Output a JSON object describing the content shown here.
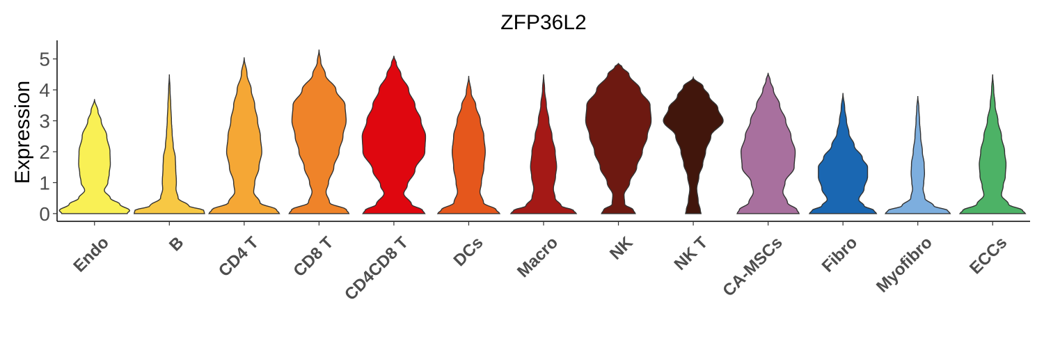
{
  "chart_data": {
    "type": "violin",
    "title": "ZFP36L2",
    "xlabel": "",
    "ylabel": "Expression",
    "ylim": [
      -0.25,
      5.6
    ],
    "yticks": [
      0,
      1,
      2,
      3,
      4,
      5
    ],
    "grid": false,
    "legend": "none",
    "categories": [
      "Endo",
      "B",
      "CD4 T",
      "CD8 T",
      "CD4CD8 T",
      "DCs",
      "Macro",
      "NK",
      "NK T",
      "CA-MSCs",
      "Fibro",
      "Myofibro",
      "ECCs"
    ],
    "series": [
      {
        "category": "Endo",
        "color": "#F9F055",
        "max": 3.7,
        "profile": [
          [
            0,
            0.93
          ],
          [
            0.1,
            1
          ],
          [
            0.3,
            0.72
          ],
          [
            0.5,
            0.45
          ],
          [
            0.75,
            0.28
          ],
          [
            1,
            0.38
          ],
          [
            1.3,
            0.42
          ],
          [
            1.6,
            0.45
          ],
          [
            2.0,
            0.44
          ],
          [
            2.5,
            0.35
          ],
          [
            3.0,
            0.19
          ],
          [
            3.3,
            0.1
          ],
          [
            3.7,
            0
          ]
        ]
      },
      {
        "category": "B",
        "color": "#F7C844",
        "max": 4.5,
        "profile": [
          [
            0,
            1
          ],
          [
            0.1,
            0.98
          ],
          [
            0.25,
            0.55
          ],
          [
            0.5,
            0.25
          ],
          [
            0.8,
            0.19
          ],
          [
            1.0,
            0.2
          ],
          [
            1.5,
            0.18
          ],
          [
            1.8,
            0.17
          ],
          [
            2.2,
            0.11
          ],
          [
            2.6,
            0.08
          ],
          [
            3.0,
            0.06
          ],
          [
            3.5,
            0.04
          ],
          [
            4.0,
            0.02
          ],
          [
            4.5,
            0
          ]
        ]
      },
      {
        "category": "CD4 T",
        "color": "#F5A735",
        "max": 5.05,
        "profile": [
          [
            0,
            1
          ],
          [
            0.12,
            0.92
          ],
          [
            0.35,
            0.45
          ],
          [
            0.7,
            0.27
          ],
          [
            1.0,
            0.3
          ],
          [
            1.5,
            0.42
          ],
          [
            2.0,
            0.5
          ],
          [
            2.5,
            0.46
          ],
          [
            3.0,
            0.38
          ],
          [
            3.5,
            0.3
          ],
          [
            4.0,
            0.2
          ],
          [
            4.5,
            0.08
          ],
          [
            5.05,
            0
          ]
        ]
      },
      {
        "category": "CD8 T",
        "color": "#EF8329",
        "max": 5.3,
        "profile": [
          [
            0,
            0.85
          ],
          [
            0.12,
            0.78
          ],
          [
            0.35,
            0.3
          ],
          [
            0.7,
            0.2
          ],
          [
            1.0,
            0.27
          ],
          [
            1.5,
            0.42
          ],
          [
            2.0,
            0.57
          ],
          [
            2.5,
            0.68
          ],
          [
            3.0,
            0.77
          ],
          [
            3.5,
            0.74
          ],
          [
            4.0,
            0.48
          ],
          [
            4.5,
            0.18
          ],
          [
            4.9,
            0.05
          ],
          [
            5.3,
            0
          ]
        ]
      },
      {
        "category": "CD4CD8 T",
        "color": "#DF070F",
        "max": 5.1,
        "profile": [
          [
            0,
            0.88
          ],
          [
            0.1,
            0.82
          ],
          [
            0.3,
            0.5
          ],
          [
            0.65,
            0.28
          ],
          [
            0.9,
            0.38
          ],
          [
            1.4,
            0.6
          ],
          [
            2.0,
            0.88
          ],
          [
            2.5,
            0.9
          ],
          [
            3.0,
            0.77
          ],
          [
            3.5,
            0.6
          ],
          [
            4.0,
            0.42
          ],
          [
            4.5,
            0.2
          ],
          [
            4.85,
            0.07
          ],
          [
            5.1,
            0
          ]
        ]
      },
      {
        "category": "DCs",
        "color": "#E5571C",
        "max": 4.45,
        "profile": [
          [
            0,
            0.88
          ],
          [
            0.12,
            0.78
          ],
          [
            0.35,
            0.42
          ],
          [
            0.7,
            0.32
          ],
          [
            1.0,
            0.36
          ],
          [
            1.5,
            0.43
          ],
          [
            2.0,
            0.47
          ],
          [
            2.5,
            0.43
          ],
          [
            3.0,
            0.33
          ],
          [
            3.5,
            0.2
          ],
          [
            3.9,
            0.07
          ],
          [
            4.45,
            0
          ]
        ]
      },
      {
        "category": "Macro",
        "color": "#A41916",
        "max": 4.5,
        "profile": [
          [
            0,
            0.93
          ],
          [
            0.1,
            0.85
          ],
          [
            0.25,
            0.5
          ],
          [
            0.5,
            0.33
          ],
          [
            0.8,
            0.28
          ],
          [
            1.2,
            0.34
          ],
          [
            1.5,
            0.37
          ],
          [
            2.0,
            0.33
          ],
          [
            2.5,
            0.24
          ],
          [
            3.0,
            0.15
          ],
          [
            3.5,
            0.08
          ],
          [
            4.0,
            0.03
          ],
          [
            4.5,
            0
          ]
        ]
      },
      {
        "category": "NK",
        "color": "#6D1911",
        "max": 4.85,
        "profile": [
          [
            0,
            0.48
          ],
          [
            0.12,
            0.42
          ],
          [
            0.3,
            0.18
          ],
          [
            0.6,
            0.16
          ],
          [
            1.0,
            0.32
          ],
          [
            1.5,
            0.52
          ],
          [
            2.0,
            0.68
          ],
          [
            2.5,
            0.82
          ],
          [
            3.0,
            0.93
          ],
          [
            3.5,
            0.9
          ],
          [
            4.0,
            0.62
          ],
          [
            4.5,
            0.3
          ],
          [
            4.75,
            0.1
          ],
          [
            4.85,
            0
          ]
        ]
      },
      {
        "category": "NK T",
        "color": "#41160C",
        "max": 4.4,
        "profile": [
          [
            0,
            0.22
          ],
          [
            0.1,
            0.2
          ],
          [
            0.4,
            0.14
          ],
          [
            0.8,
            0.1
          ],
          [
            1.2,
            0.16
          ],
          [
            1.6,
            0.27
          ],
          [
            2.0,
            0.35
          ],
          [
            2.5,
            0.5
          ],
          [
            3.0,
            0.85
          ],
          [
            3.4,
            0.7
          ],
          [
            3.8,
            0.45
          ],
          [
            4.1,
            0.28
          ],
          [
            4.4,
            0
          ]
        ]
      },
      {
        "category": "CA-MSCs",
        "color": "#A8709E",
        "max": 4.55,
        "profile": [
          [
            0,
            0.88
          ],
          [
            0.12,
            0.82
          ],
          [
            0.35,
            0.55
          ],
          [
            0.7,
            0.42
          ],
          [
            1.0,
            0.48
          ],
          [
            1.5,
            0.74
          ],
          [
            2.0,
            0.77
          ],
          [
            2.5,
            0.65
          ],
          [
            3.0,
            0.5
          ],
          [
            3.5,
            0.33
          ],
          [
            4.0,
            0.15
          ],
          [
            4.3,
            0.06
          ],
          [
            4.55,
            0
          ]
        ]
      },
      {
        "category": "Fibro",
        "color": "#1A67B2",
        "max": 3.9,
        "profile": [
          [
            0,
            0.95
          ],
          [
            0.1,
            0.88
          ],
          [
            0.25,
            0.6
          ],
          [
            0.45,
            0.45
          ],
          [
            0.8,
            0.6
          ],
          [
            1.2,
            0.7
          ],
          [
            1.5,
            0.7
          ],
          [
            1.8,
            0.55
          ],
          [
            2.2,
            0.32
          ],
          [
            2.6,
            0.17
          ],
          [
            3.0,
            0.1
          ],
          [
            3.4,
            0.05
          ],
          [
            3.9,
            0
          ]
        ]
      },
      {
        "category": "Myofibro",
        "color": "#7DAEDE",
        "max": 3.8,
        "profile": [
          [
            0,
            0.92
          ],
          [
            0.1,
            0.85
          ],
          [
            0.25,
            0.45
          ],
          [
            0.5,
            0.2
          ],
          [
            0.8,
            0.15
          ],
          [
            1.0,
            0.17
          ],
          [
            1.3,
            0.19
          ],
          [
            1.6,
            0.18
          ],
          [
            2.0,
            0.13
          ],
          [
            2.5,
            0.08
          ],
          [
            3.0,
            0.05
          ],
          [
            3.4,
            0.03
          ],
          [
            3.8,
            0
          ]
        ]
      },
      {
        "category": "ECCs",
        "color": "#4DB266",
        "max": 4.5,
        "profile": [
          [
            0,
            0.93
          ],
          [
            0.1,
            0.85
          ],
          [
            0.3,
            0.45
          ],
          [
            0.6,
            0.25
          ],
          [
            0.9,
            0.3
          ],
          [
            1.2,
            0.36
          ],
          [
            1.6,
            0.38
          ],
          [
            2.0,
            0.34
          ],
          [
            2.5,
            0.25
          ],
          [
            3.0,
            0.15
          ],
          [
            3.5,
            0.07
          ],
          [
            4.0,
            0.03
          ],
          [
            4.5,
            0
          ]
        ]
      }
    ]
  }
}
